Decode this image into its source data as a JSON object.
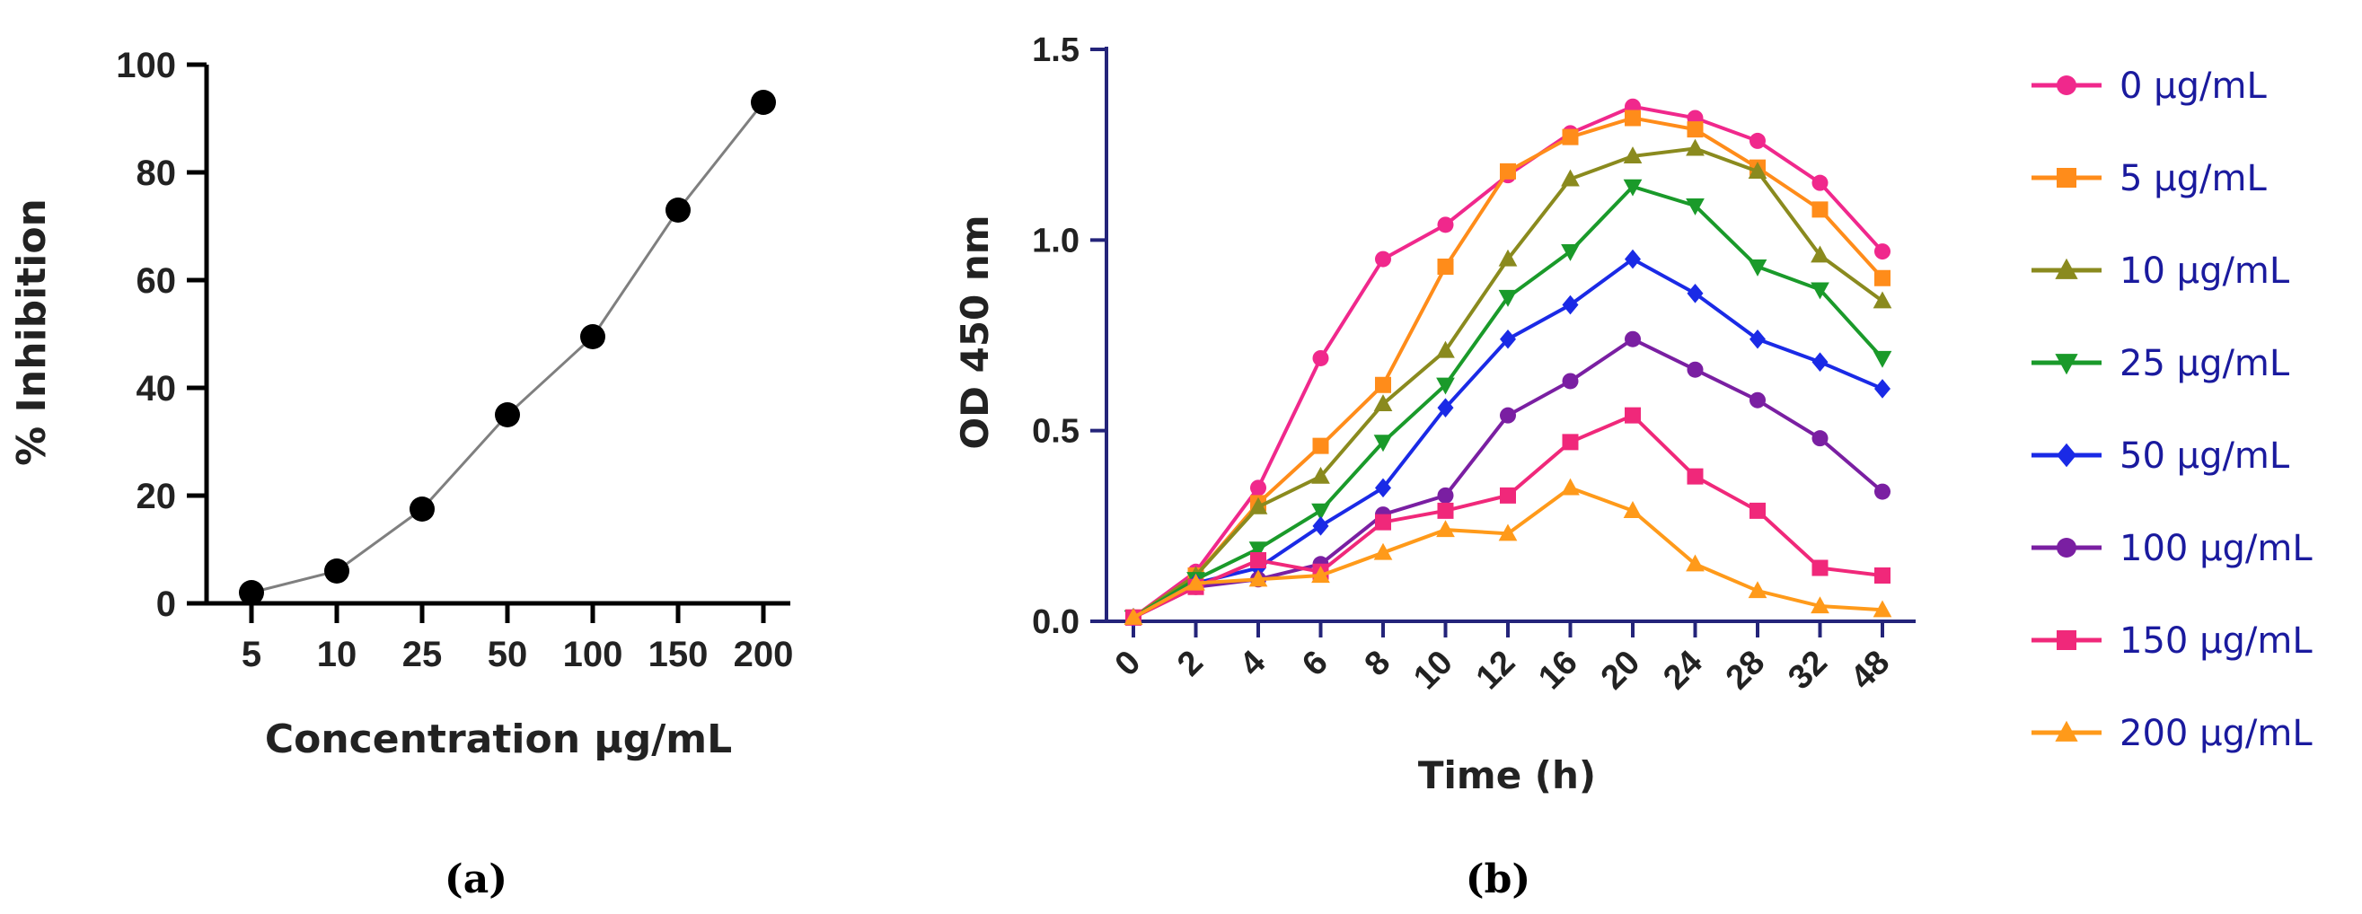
{
  "chart_data": [
    {
      "type": "line",
      "panel": "(a)",
      "xlabel": "Concentration µg/mL",
      "ylabel": "% Inhibition",
      "categories": [
        "5",
        "10",
        "25",
        "50",
        "100",
        "150",
        "200"
      ],
      "ylim": [
        0,
        100
      ],
      "yticks": [
        0,
        20,
        40,
        60,
        80,
        100
      ],
      "grid": false,
      "series": [
        {
          "values": [
            2,
            6,
            17.5,
            35,
            49.5,
            73,
            93
          ],
          "color": "#7f7f7f",
          "marker": "circle",
          "marker_color": "#000000"
        }
      ]
    },
    {
      "type": "line",
      "panel": "(b)",
      "xlabel": "Time (h)",
      "ylabel": "OD 450 nm",
      "categories": [
        "0",
        "2",
        "4",
        "6",
        "8",
        "10",
        "12",
        "16",
        "20",
        "24",
        "28",
        "32",
        "48"
      ],
      "ylim": [
        0,
        1.5
      ],
      "yticks": [
        "0.0",
        "0.5",
        "1.0",
        "1.5"
      ],
      "grid": false,
      "legend_position": "right",
      "series": [
        {
          "name": "0 µg/mL",
          "color": "#f0288c",
          "marker": "circle",
          "values": [
            0.01,
            0.13,
            0.35,
            0.69,
            0.95,
            1.04,
            1.17,
            1.28,
            1.35,
            1.32,
            1.26,
            1.15,
            0.97
          ]
        },
        {
          "name": "5 µg/mL",
          "color": "#ff8c1a",
          "marker": "square",
          "values": [
            0.01,
            0.12,
            0.31,
            0.46,
            0.62,
            0.93,
            1.18,
            1.27,
            1.32,
            1.29,
            1.19,
            1.08,
            0.9
          ]
        },
        {
          "name": "10 µg/mL",
          "color": "#8a8a1e",
          "marker": "triangle-up",
          "values": [
            0.01,
            0.12,
            0.3,
            0.38,
            0.57,
            0.71,
            0.95,
            1.16,
            1.22,
            1.24,
            1.18,
            0.96,
            0.84
          ]
        },
        {
          "name": "25 µg/mL",
          "color": "#1a9a2a",
          "marker": "triangle-down",
          "values": [
            0.01,
            0.11,
            0.19,
            0.29,
            0.47,
            0.62,
            0.85,
            0.97,
            1.14,
            1.09,
            0.93,
            0.87,
            0.69
          ]
        },
        {
          "name": "50 µg/mL",
          "color": "#1a2ae6",
          "marker": "diamond",
          "values": [
            0.01,
            0.1,
            0.14,
            0.25,
            0.35,
            0.56,
            0.74,
            0.83,
            0.95,
            0.86,
            0.74,
            0.68,
            0.61
          ]
        },
        {
          "name": "100 µg/mL",
          "color": "#7a1fa2",
          "marker": "circle",
          "values": [
            0.01,
            0.09,
            0.11,
            0.15,
            0.28,
            0.33,
            0.54,
            0.63,
            0.74,
            0.66,
            0.58,
            0.48,
            0.34
          ]
        },
        {
          "name": "150 µg/mL",
          "color": "#f0287a",
          "marker": "square",
          "values": [
            0.01,
            0.09,
            0.16,
            0.13,
            0.26,
            0.29,
            0.33,
            0.47,
            0.54,
            0.38,
            0.29,
            0.14,
            0.12
          ]
        },
        {
          "name": "200 µg/mL",
          "color": "#ff9a1a",
          "marker": "triangle-up",
          "values": [
            0.01,
            0.1,
            0.11,
            0.12,
            0.18,
            0.24,
            0.23,
            0.35,
            0.29,
            0.15,
            0.08,
            0.04,
            0.03
          ]
        }
      ]
    }
  ]
}
